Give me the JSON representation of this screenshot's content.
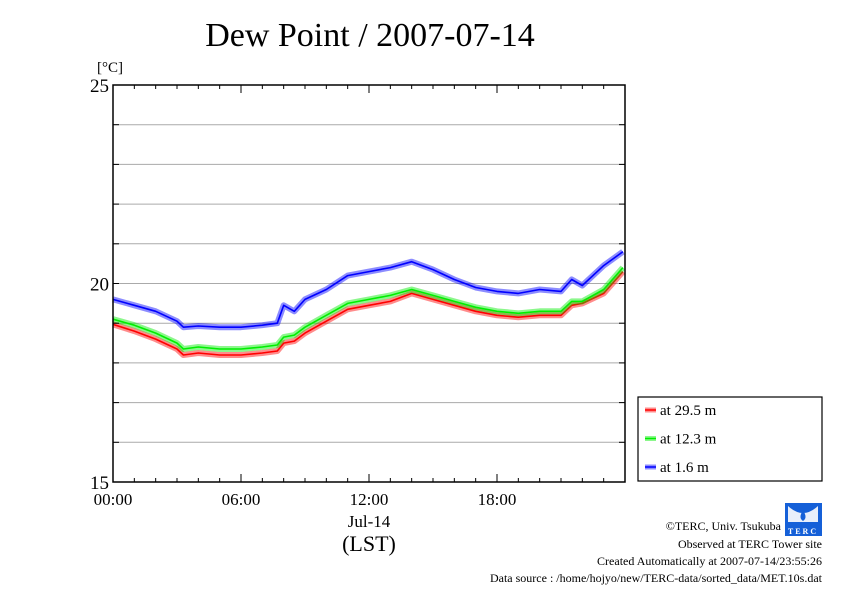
{
  "chart_data": {
    "type": "line",
    "title": "Dew Point / 2007-07-14",
    "ylabel": "[°C]",
    "xlabel": "(LST)",
    "date_label": "Jul-14",
    "ylim": [
      15,
      25
    ],
    "xlim": [
      0,
      24
    ],
    "y_ticks": [
      15,
      20,
      25
    ],
    "y_tick_labels": [
      "15",
      "20",
      "25"
    ],
    "y_minor_grid": [
      16,
      17,
      18,
      19,
      21,
      22,
      23,
      24
    ],
    "x_ticks": [
      0,
      6,
      12,
      18
    ],
    "x_tick_labels": [
      "00:00",
      "06:00",
      "12:00",
      "18:00"
    ],
    "grid": true,
    "legend_position": "right-bottom outside",
    "x": [
      0,
      1,
      2,
      3,
      3.3,
      4,
      5,
      6,
      7,
      7.7,
      8,
      8.5,
      9,
      10,
      11,
      12,
      13,
      14,
      15,
      16,
      17,
      18,
      19,
      20,
      21,
      21.5,
      22,
      23,
      23.9
    ],
    "series": [
      {
        "name": "at 29.5 m",
        "color": "#ff0000",
        "values": [
          18.97,
          18.8,
          18.6,
          18.35,
          18.2,
          18.25,
          18.2,
          18.2,
          18.25,
          18.3,
          18.5,
          18.55,
          18.75,
          19.05,
          19.35,
          19.45,
          19.55,
          19.75,
          19.6,
          19.45,
          19.3,
          19.2,
          19.15,
          19.2,
          19.2,
          19.45,
          19.5,
          19.75,
          20.3
        ]
      },
      {
        "name": "at 12.3 m",
        "color": "#00ee00",
        "values": [
          19.1,
          18.95,
          18.75,
          18.5,
          18.35,
          18.4,
          18.35,
          18.35,
          18.4,
          18.45,
          18.65,
          18.7,
          18.9,
          19.2,
          19.5,
          19.6,
          19.7,
          19.85,
          19.7,
          19.55,
          19.4,
          19.3,
          19.25,
          19.3,
          19.3,
          19.55,
          19.55,
          19.85,
          20.4
        ]
      },
      {
        "name": "at 1.6 m",
        "color": "#0000ff",
        "values": [
          19.6,
          19.45,
          19.3,
          19.05,
          18.9,
          18.93,
          18.9,
          18.9,
          18.95,
          19.0,
          19.45,
          19.3,
          19.6,
          19.85,
          20.2,
          20.3,
          20.4,
          20.55,
          20.35,
          20.1,
          19.9,
          19.8,
          19.75,
          19.85,
          19.8,
          20.1,
          19.95,
          20.45,
          20.8
        ]
      }
    ]
  },
  "footer": {
    "copyright": "©TERC, Univ. Tsukuba",
    "observed": "Observed at TERC Tower site",
    "created": "Created Automatically at 2007-07-14/23:55:26",
    "source": "Data source : /home/hojyo/new/TERC-data/sorted_data/MET.10s.dat",
    "logo_text": "TERC"
  }
}
